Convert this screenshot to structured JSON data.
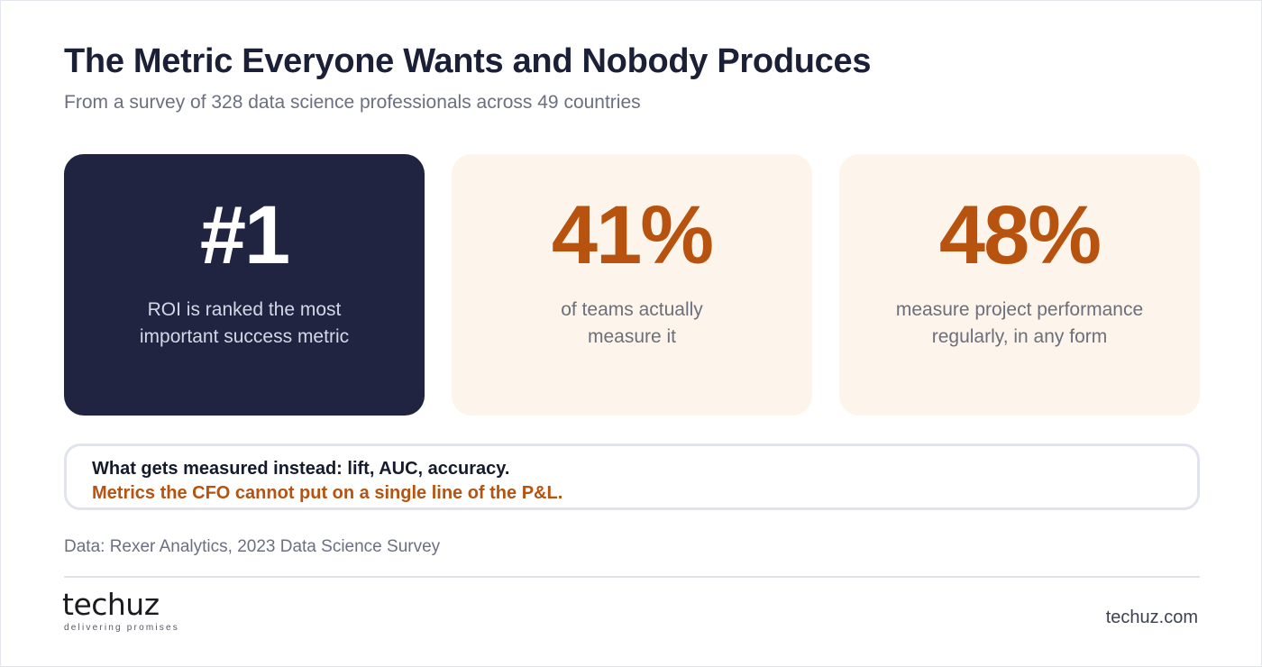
{
  "header": {
    "title": "The Metric Everyone Wants and Nobody Produces",
    "subtitle": "From a survey of 328 data science professionals across 49 countries"
  },
  "stats": [
    {
      "value": "#1",
      "line1": "ROI is ranked the most",
      "line2": "important success metric"
    },
    {
      "value": "41%",
      "line1": "of teams actually",
      "line2": "measure it"
    },
    {
      "value": "48%",
      "line1": "measure project performance",
      "line2": "regularly, in any form"
    }
  ],
  "callout": {
    "line1": "What gets measured instead: lift, AUC, accuracy.",
    "line2": "Metrics the CFO cannot put on a single line of the P&L."
  },
  "footer": {
    "source": "Data: Rexer Analytics, 2023 Data Science Survey",
    "logo_name": "techuz",
    "logo_tagline": "delivering promises",
    "site": "techuz.com"
  },
  "colors": {
    "dark_card": "#202441",
    "light_card": "#fdf5eb",
    "accent": "#b7520f",
    "title": "#1b2036"
  }
}
